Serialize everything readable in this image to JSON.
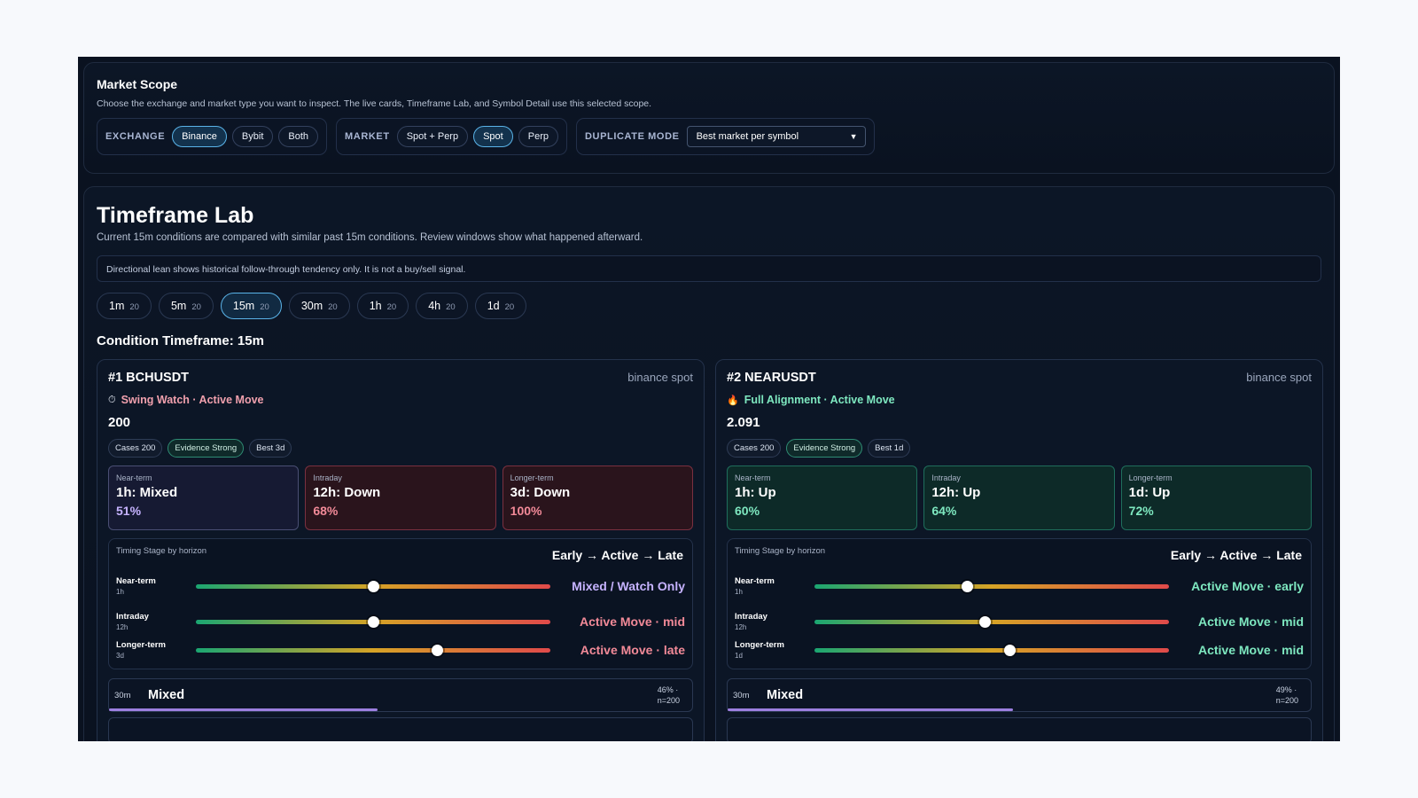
{
  "scope": {
    "title": "Market Scope",
    "description": "Choose the exchange and market type you want to inspect. The live cards, Timeframe Lab, and Symbol Detail use this selected scope.",
    "exchange": {
      "label": "EXCHANGE",
      "options": [
        "Binance",
        "Bybit",
        "Both"
      ],
      "selected": "Binance"
    },
    "market": {
      "label": "MARKET",
      "options": [
        "Spot + Perp",
        "Spot",
        "Perp"
      ],
      "selected": "Spot"
    },
    "duplicate": {
      "label": "DUPLICATE MODE",
      "value": "Best market per symbol"
    }
  },
  "lab": {
    "title": "Timeframe Lab",
    "subtitle": "Current 15m conditions are compared with similar past 15m conditions. Review windows show what happened afterward.",
    "notice": "Directional lean shows historical follow-through tendency only. It is not a buy/sell signal.",
    "timeframes": [
      {
        "label": "1m",
        "count": "20"
      },
      {
        "label": "5m",
        "count": "20"
      },
      {
        "label": "15m",
        "count": "20"
      },
      {
        "label": "30m",
        "count": "20"
      },
      {
        "label": "1h",
        "count": "20"
      },
      {
        "label": "4h",
        "count": "20"
      },
      {
        "label": "1d",
        "count": "20"
      }
    ],
    "selected_timeframe": "15m",
    "condition_title": "Condition Timeframe: 15m"
  },
  "cards": [
    {
      "title": "#1 BCHUSDT",
      "venue": "binance spot",
      "icon": "stopwatch-icon",
      "tag": "Swing Watch · Active Move",
      "tag_color": "#f0a0ad",
      "price": "200",
      "chips": [
        "Cases 200",
        "Evidence Strong",
        "Best 3d"
      ],
      "horizons": [
        {
          "label": "Near-term",
          "value": "1h: Mixed",
          "pct": "51%",
          "tone": "mixed",
          "pct_color": "#c6b3ff"
        },
        {
          "label": "Intraday",
          "value": "12h: Down",
          "pct": "68%",
          "tone": "down",
          "pct_color": "#f28a98"
        },
        {
          "label": "Longer-term",
          "value": "3d: Down",
          "pct": "100%",
          "tone": "down",
          "pct_color": "#f28a98"
        }
      ],
      "timing": {
        "label": "Timing Stage by horizon",
        "legend": "Early → Active → Late",
        "rows": [
          {
            "name": "Near-term",
            "sub": "1h",
            "pos": 0.5,
            "stage": "Mixed / Watch Only",
            "color": "#c6b3ff"
          },
          {
            "name": "Intraday",
            "sub": "12h",
            "pos": 0.5,
            "stage": "Active Move · mid",
            "color": "#f28a98"
          },
          {
            "name": "Longer-term",
            "sub": "3d",
            "pos": 0.68,
            "stage": "Active Move · late",
            "color": "#f28a98"
          }
        ]
      },
      "mini": {
        "tf": "30m",
        "label": "Mixed",
        "stat1": "46% ·",
        "stat2": "n=200",
        "fill": 0.46
      }
    },
    {
      "title": "#2 NEARUSDT",
      "venue": "binance spot",
      "icon": "fire-icon",
      "tag": "Full Alignment · Active Move",
      "tag_color": "#7ee8c0",
      "price": "2.091",
      "chips": [
        "Cases 200",
        "Evidence Strong",
        "Best 1d"
      ],
      "horizons": [
        {
          "label": "Near-term",
          "value": "1h: Up",
          "pct": "60%",
          "tone": "up",
          "pct_color": "#7ee8c0"
        },
        {
          "label": "Intraday",
          "value": "12h: Up",
          "pct": "64%",
          "tone": "up",
          "pct_color": "#7ee8c0"
        },
        {
          "label": "Longer-term",
          "value": "1d: Up",
          "pct": "72%",
          "tone": "up",
          "pct_color": "#7ee8c0"
        }
      ],
      "timing": {
        "label": "Timing Stage by horizon",
        "legend": "Early → Active → Late",
        "rows": [
          {
            "name": "Near-term",
            "sub": "1h",
            "pos": 0.43,
            "stage": "Active Move · early",
            "color": "#7ee8c0"
          },
          {
            "name": "Intraday",
            "sub": "12h",
            "pos": 0.48,
            "stage": "Active Move · mid",
            "color": "#7ee8c0"
          },
          {
            "name": "Longer-term",
            "sub": "1d",
            "pos": 0.55,
            "stage": "Active Move · mid",
            "color": "#7ee8c0"
          }
        ]
      },
      "mini": {
        "tf": "30m",
        "label": "Mixed",
        "stat1": "49% ·",
        "stat2": "n=200",
        "fill": 0.49
      }
    }
  ]
}
